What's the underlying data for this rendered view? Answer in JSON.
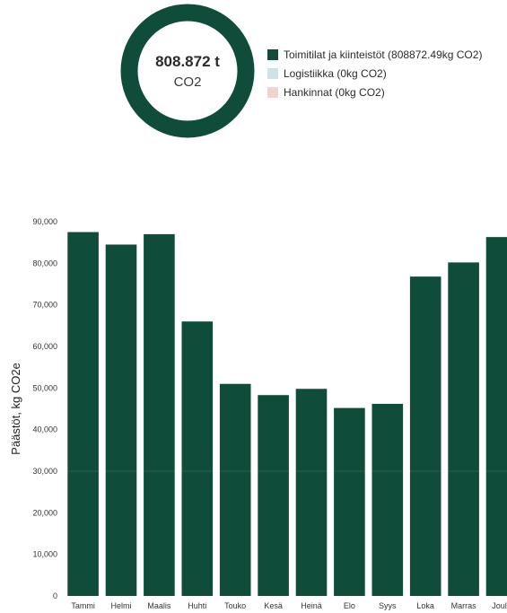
{
  "colors": {
    "primary": "#0f4c3a",
    "logistics": "#cfe3e6",
    "purchases": "#f3d3d0"
  },
  "chart_data": [
    {
      "type": "pie",
      "variant": "donut",
      "center_total": "808.872 t",
      "center_unit": "CO2",
      "slices": [
        {
          "label": "Toimitilat ja kiinteistöt (808872.49kg CO2)",
          "value": 808872.49,
          "color": "#0f4c3a"
        },
        {
          "label": "Logistiikka (0kg CO2)",
          "value": 0,
          "color": "#cfe3e6"
        },
        {
          "label": "Hankinnat (0kg CO2)",
          "value": 0,
          "color": "#f3d3d0"
        }
      ],
      "legend_position": "right"
    },
    {
      "type": "bar",
      "ylabel": "Päästöt, kg CO2e",
      "xlabel": "",
      "ylim": [
        0,
        90000
      ],
      "yticks": [
        "0",
        "10,000",
        "20,000",
        "30,000",
        "40,000",
        "50,000",
        "60,000",
        "70,000",
        "80,000",
        "90,000"
      ],
      "categories": [
        "Tammi",
        "Helmi",
        "Maalis",
        "Huhti",
        "Touko",
        "Kesä",
        "Heinä",
        "Elo",
        "Syys",
        "Loka",
        "Marras",
        "Joulu"
      ],
      "values": [
        87500,
        84500,
        87000,
        66000,
        51000,
        48300,
        49800,
        45200,
        46200,
        76800,
        80200,
        86300
      ],
      "color": "#0f4c3a",
      "grid": true
    }
  ]
}
